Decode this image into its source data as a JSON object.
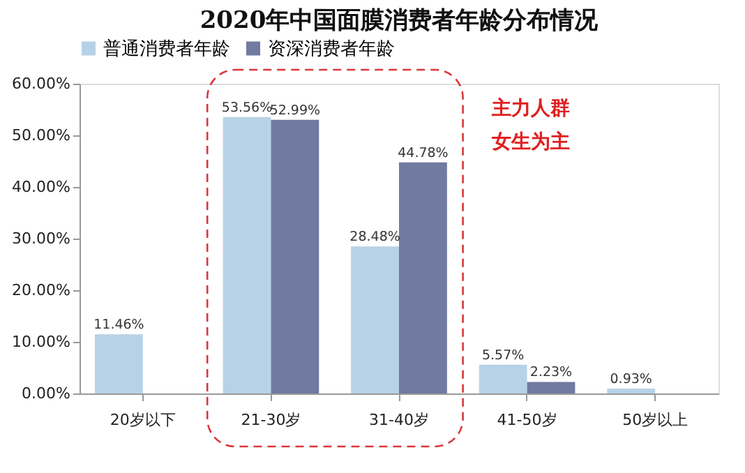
{
  "chart_data": {
    "type": "bar",
    "title": "2020年中国面膜消费者年龄分布情况",
    "categories": [
      "20岁以下",
      "21-30岁",
      "31-40岁",
      "41-50岁",
      "50岁以上"
    ],
    "series": [
      {
        "name": "普通消费者年龄",
        "color": "#b7d2e6",
        "values": [
          11.46,
          53.56,
          28.48,
          5.57,
          0.93
        ],
        "value_labels": [
          "11.46%",
          "53.56%",
          "28.48%",
          "5.57%",
          "0.93%"
        ]
      },
      {
        "name": "资深消费者年龄",
        "color": "#717aa0",
        "values": [
          null,
          52.99,
          44.78,
          2.23,
          null
        ],
        "value_labels": [
          null,
          "52.99%",
          "44.78%",
          "2.23%",
          null
        ]
      }
    ],
    "ylim": [
      0,
      60
    ],
    "yticks": [
      {
        "value": 0,
        "label": "0.00%"
      },
      {
        "value": 10,
        "label": "10.00%"
      },
      {
        "value": 20,
        "label": "20.00%"
      },
      {
        "value": 30,
        "label": "30.00%"
      },
      {
        "value": 40,
        "label": "40.00%"
      },
      {
        "value": 50,
        "label": "50.00%"
      },
      {
        "value": 60,
        "label": "60.00%"
      }
    ],
    "annotations": [
      "主力人群",
      "女生为主"
    ],
    "legend": "top",
    "grid": false
  }
}
